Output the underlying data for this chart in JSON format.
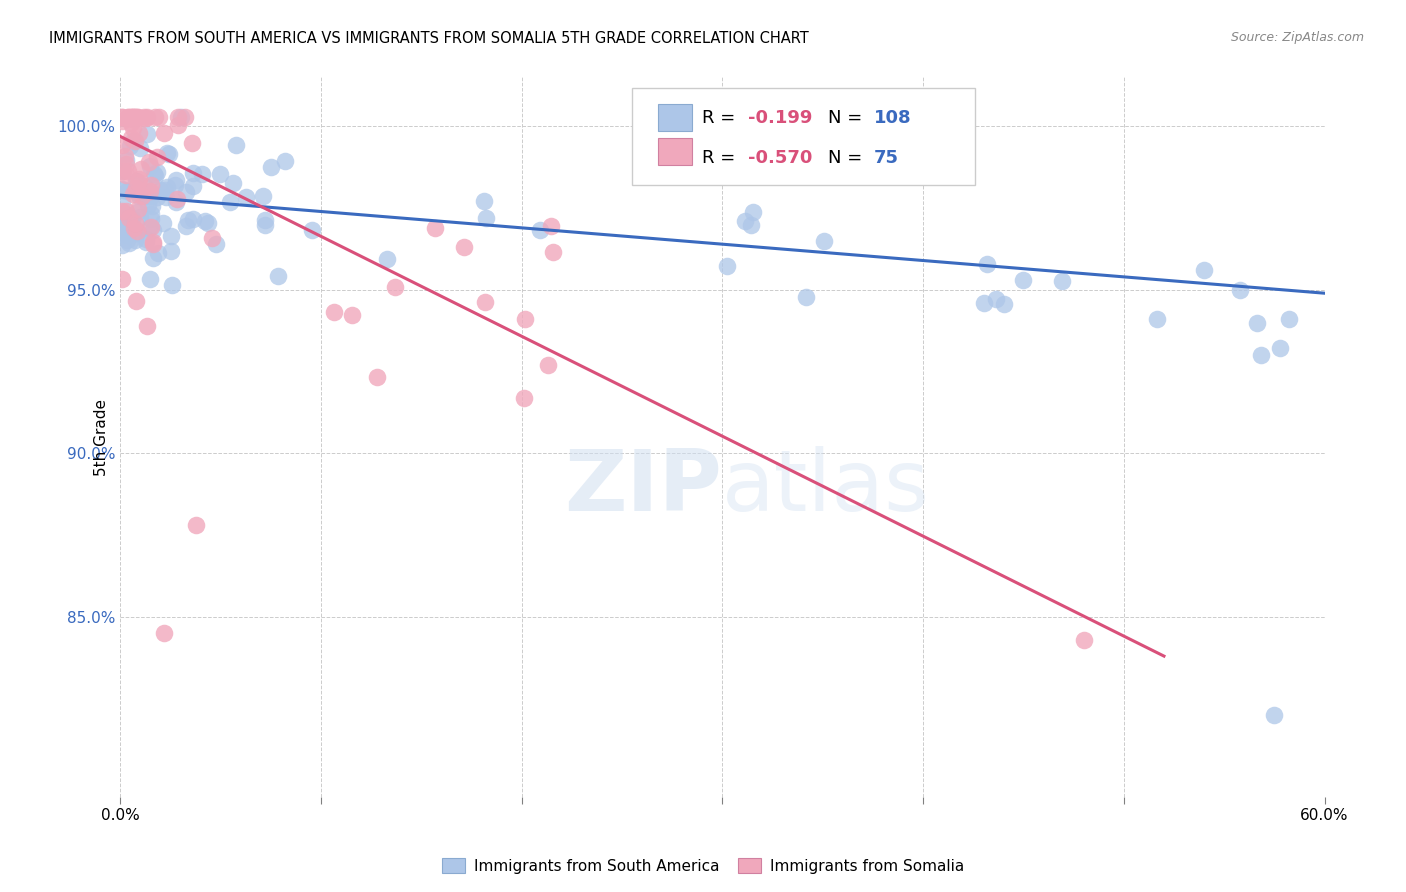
{
  "title": "IMMIGRANTS FROM SOUTH AMERICA VS IMMIGRANTS FROM SOMALIA 5TH GRADE CORRELATION CHART",
  "source": "Source: ZipAtlas.com",
  "ylabel": "5th Grade",
  "ytick_values": [
    0.85,
    0.9,
    0.95,
    1.0
  ],
  "ytick_labels": [
    "85.0%",
    "90.0%",
    "95.0%",
    "100.0%"
  ],
  "xlim": [
    0.0,
    0.6
  ],
  "ylim": [
    0.795,
    1.015
  ],
  "legend_blue_r": "-0.199",
  "legend_blue_n": "108",
  "legend_pink_r": "-0.570",
  "legend_pink_n": "75",
  "blue_dot_color": "#adc6e8",
  "pink_dot_color": "#f0a8bc",
  "blue_line_color": "#3a6abf",
  "pink_line_color": "#d9507a",
  "r_value_color": "#d9507a",
  "n_value_color": "#3a6abf",
  "legend_text_blue": "Immigrants from South America",
  "legend_text_pink": "Immigrants from Somalia",
  "watermark_zip": "ZIP",
  "watermark_atlas": "atlas",
  "blue_line_x0": 0.0,
  "blue_line_x1": 0.6,
  "blue_line_y0": 0.979,
  "blue_line_y1": 0.949,
  "pink_line_x0": 0.0,
  "pink_line_x1": 0.52,
  "pink_line_y0": 0.997,
  "pink_line_y1": 0.838,
  "seed_blue": 12,
  "seed_pink": 7
}
